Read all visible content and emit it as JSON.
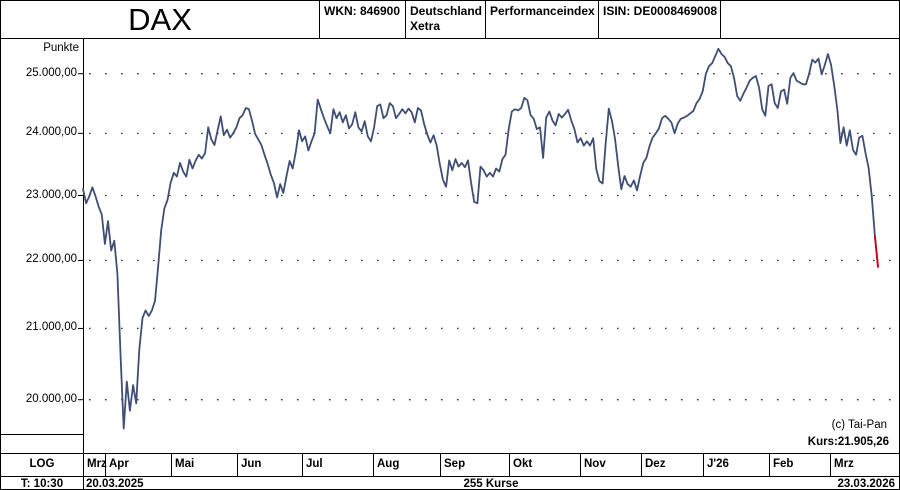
{
  "header": {
    "title": "DAX",
    "wkn": "WKN: 846900",
    "country": "Deutschland",
    "exchange": "Xetra",
    "index_type": "Performanceindex",
    "isin": "ISIN: DE0008469008"
  },
  "y_axis": {
    "unit": "Punkte",
    "labels": [
      "25.000,00",
      "24.000,00",
      "23.000,00",
      "22.000,00",
      "21.000,00",
      "20.000,00"
    ],
    "values": [
      25000,
      24000,
      23000,
      22000,
      21000,
      20000
    ]
  },
  "x_axis": {
    "months": [
      "Mrz",
      "Apr",
      "Mai",
      "Jun",
      "Jul",
      "Aug",
      "Sep",
      "Okt",
      "Nov",
      "Dez",
      "J'26",
      "Feb",
      "Mrz"
    ],
    "start_date": "20.03.2025",
    "end_date": "23.03.2026",
    "count_label": "255 Kurse"
  },
  "footer": {
    "scale": "LOG",
    "time": "T: 10:30"
  },
  "overlay": {
    "copyright": "(c) Tai-Pan",
    "kurs_label": "Kurs:21.905,26"
  },
  "colors": {
    "line": "#3f4e74",
    "final_segment": "#cc0018",
    "grid_dot": "#333333",
    "border": "#000000"
  },
  "chart_data": {
    "type": "line",
    "title": "DAX",
    "ylabel": "Punkte",
    "yscale": "log",
    "ylim": [
      19500,
      25550
    ],
    "grid": "dotted-horizontal",
    "x_start": "20.03.2025",
    "x_end": "23.03.2026",
    "n_points": 255,
    "last_value": 21905.26,
    "final_segment_points": 2,
    "values": [
      23100,
      22880,
      22990,
      23130,
      22990,
      22830,
      22700,
      22250,
      22600,
      22150,
      22300,
      21800,
      20600,
      19610,
      20250,
      19850,
      20200,
      19950,
      20700,
      21150,
      21260,
      21180,
      21260,
      21400,
      21900,
      22460,
      22800,
      22930,
      23200,
      23360,
      23300,
      23520,
      23380,
      23300,
      23570,
      23430,
      23560,
      23650,
      23590,
      23680,
      24100,
      23900,
      23810,
      24050,
      24280,
      23970,
      24060,
      23930,
      24000,
      24100,
      24250,
      24300,
      24420,
      24400,
      24210,
      23990,
      23900,
      23810,
      23650,
      23500,
      23330,
      23200,
      22970,
      23180,
      23040,
      23300,
      23550,
      23430,
      23700,
      24050,
      23870,
      23950,
      23720,
      23870,
      24000,
      24560,
      24400,
      24250,
      24120,
      24000,
      24400,
      24250,
      24350,
      24180,
      24300,
      24080,
      24150,
      24350,
      24100,
      24030,
      24200,
      23950,
      23870,
      24100,
      24450,
      24480,
      24250,
      24300,
      24500,
      24450,
      24250,
      24320,
      24400,
      24330,
      24410,
      24350,
      24180,
      24420,
      24380,
      24150,
      23980,
      23850,
      23970,
      23800,
      23500,
      23250,
      23140,
      23560,
      23400,
      23580,
      23460,
      23520,
      23450,
      23560,
      23200,
      22900,
      22880,
      23460,
      23400,
      23300,
      23360,
      23300,
      23430,
      23380,
      23580,
      23650,
      24070,
      24360,
      24400,
      24380,
      24420,
      24590,
      24550,
      24300,
      24240,
      24070,
      24100,
      23600,
      24260,
      24360,
      24210,
      24130,
      24320,
      24260,
      24320,
      24390,
      24210,
      24070,
      23850,
      23920,
      23800,
      23870,
      23800,
      23920,
      23420,
      23230,
      23190,
      23840,
      24410,
      24200,
      23900,
      23470,
      23100,
      23310,
      23180,
      23140,
      23240,
      23080,
      23310,
      23520,
      23600,
      23790,
      23930,
      24000,
      24080,
      24250,
      24290,
      24240,
      24180,
      24000,
      24160,
      24240,
      24260,
      24290,
      24330,
      24370,
      24500,
      24570,
      24700,
      25000,
      25130,
      25180,
      25300,
      25430,
      25340,
      25290,
      25180,
      25130,
      24930,
      24620,
      24540,
      24660,
      24760,
      24880,
      24930,
      24960,
      24760,
      24400,
      24290,
      24790,
      24820,
      24500,
      24420,
      24700,
      24730,
      24490,
      24930,
      25010,
      24880,
      24850,
      24820,
      24820,
      25000,
      25240,
      25190,
      25260,
      24990,
      25150,
      25340,
      25150,
      24800,
      24400,
      23840,
      24100,
      23800,
      24050,
      23730,
      23650,
      23930,
      23960,
      23680,
      23440,
      23000,
      22370,
      21905.26
    ]
  }
}
